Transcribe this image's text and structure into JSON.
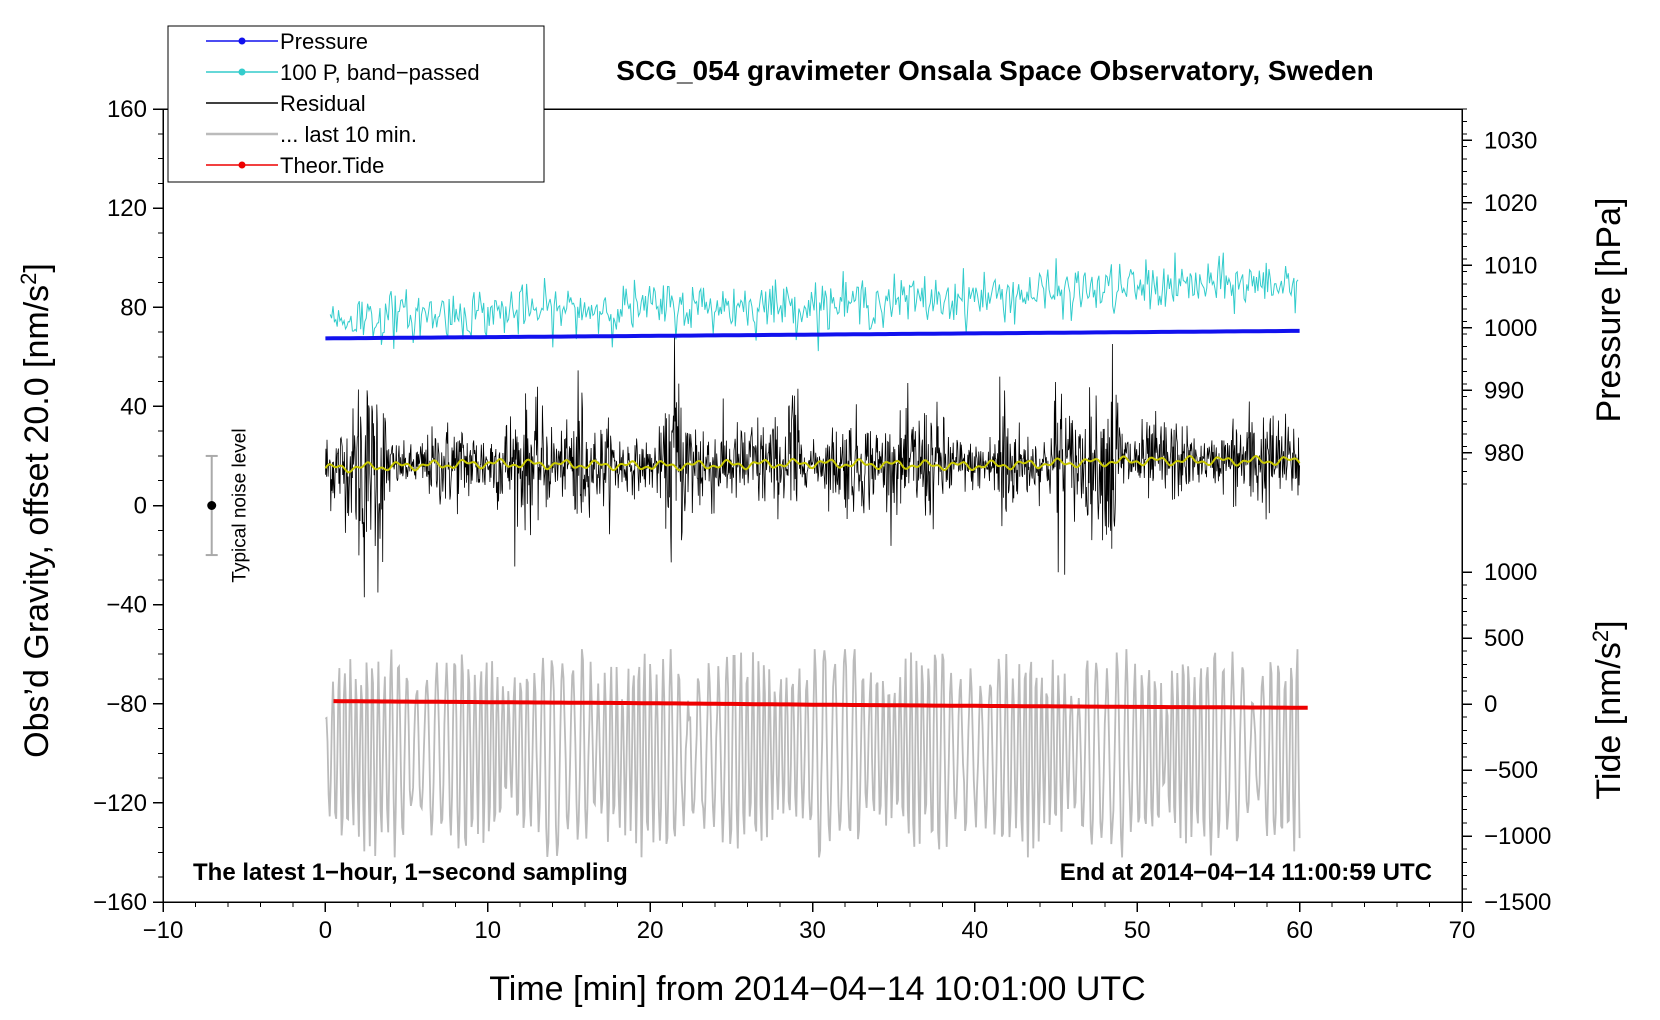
{
  "colors": {
    "pressure": "#1111ee",
    "band_passed": "#33cccc",
    "residual": "#000000",
    "last10": "#bbbbbb",
    "tide": "#ee0000",
    "smoothed": "#c8c800"
  },
  "legend": {
    "items": [
      {
        "label": "Pressure",
        "color": "#1111ee",
        "marker": true
      },
      {
        "label": "100 P, band−passed",
        "color": "#33cccc",
        "marker": true
      },
      {
        "label": "Residual",
        "color": "#000000",
        "marker": false
      },
      {
        "label": "... last 10 min.",
        "color": "#bbbbbb",
        "marker": false
      },
      {
        "label": "Theor.Tide",
        "color": "#ee0000",
        "marker": true
      }
    ]
  },
  "chart_data": {
    "type": "line",
    "title": "SCG_054 gravimeter Onsala Space Observatory, Sweden",
    "xlabel": "Time [min] from 2014−04−14 10:01:00 UTC",
    "ylabel": "Obs’d Gravity, offset 20.0 [nm/s²]",
    "ylabel_main": "Obs’d Gravity, offset 20.0 [nm/s",
    "ylabel_sup": "2",
    "ylabel_end": "]",
    "xlim": [
      -10,
      70
    ],
    "ylim": [
      -160,
      160
    ],
    "x_ticks": [
      -10,
      0,
      10,
      20,
      30,
      40,
      50,
      60,
      70
    ],
    "x_tick_labels": [
      "−10",
      "0",
      "10",
      "20",
      "30",
      "40",
      "50",
      "60",
      "70"
    ],
    "y_ticks": [
      -160,
      -120,
      -80,
      -40,
      0,
      40,
      80,
      120,
      160
    ],
    "y_tick_labels": [
      "−160",
      "−120",
      "−80",
      "−40",
      "0",
      "40",
      "80",
      "120",
      "160"
    ],
    "pressure_axis": {
      "label": "Pressure [hPa]",
      "ticks": [
        980,
        990,
        1000,
        1010,
        1020,
        1030
      ],
      "tick_labels": [
        "980",
        "990",
        "1000",
        "1010",
        "1020",
        "1030"
      ],
      "range": [
        975,
        1035
      ]
    },
    "tide_axis": {
      "label_main": "Tide [nm/s",
      "label_sup": "2",
      "label_end": "]",
      "ticks": [
        -1500,
        -1000,
        -500,
        0,
        500,
        1000
      ],
      "tick_labels": [
        "−1500",
        "−1000",
        "−500",
        "0",
        "500",
        "1000"
      ],
      "range": [
        -1500,
        1000
      ]
    },
    "notes": {
      "bottom_left": "The latest 1−hour, 1−second sampling",
      "bottom_right": "End at 2014−04−14 11:00:59 UTC",
      "noise_label": "Typical noise level"
    },
    "noise_bar": {
      "x": -7,
      "center": 0,
      "low": -20,
      "high": 20
    },
    "series": [
      {
        "name": "Pressure",
        "unit": "hPa",
        "x": [
          0,
          10,
          20,
          30,
          40,
          50,
          60
        ],
        "values": [
          998.3,
          998.5,
          998.7,
          998.9,
          999.1,
          999.3,
          999.5
        ]
      },
      {
        "name": "100 P, band-passed",
        "unit": "nm/s²",
        "x": [
          0,
          10,
          20,
          30,
          40,
          50,
          60
        ],
        "values": [
          75,
          78,
          80,
          81,
          84,
          88,
          90
        ]
      },
      {
        "name": "Residual",
        "unit": "nm/s²",
        "x": [
          0,
          10,
          20,
          30,
          40,
          50,
          60
        ],
        "values": [
          15,
          17,
          16,
          17,
          16,
          18,
          18
        ],
        "range": [
          -46,
          78
        ]
      },
      {
        "name": "... last 10 min.",
        "unit": "nm/s²",
        "x": [
          0,
          10,
          20,
          30,
          40,
          50,
          60
        ],
        "values": [
          -100,
          -98,
          -100,
          -97,
          -100,
          -99,
          -98
        ],
        "range": [
          -142,
          -58
        ]
      },
      {
        "name": "Theor.Tide",
        "unit": "nm/s²",
        "x": [
          0,
          10,
          20,
          30,
          40,
          50,
          60
        ],
        "values": [
          22,
          14,
          6,
          -5,
          -14,
          -22,
          -28
        ]
      }
    ]
  }
}
